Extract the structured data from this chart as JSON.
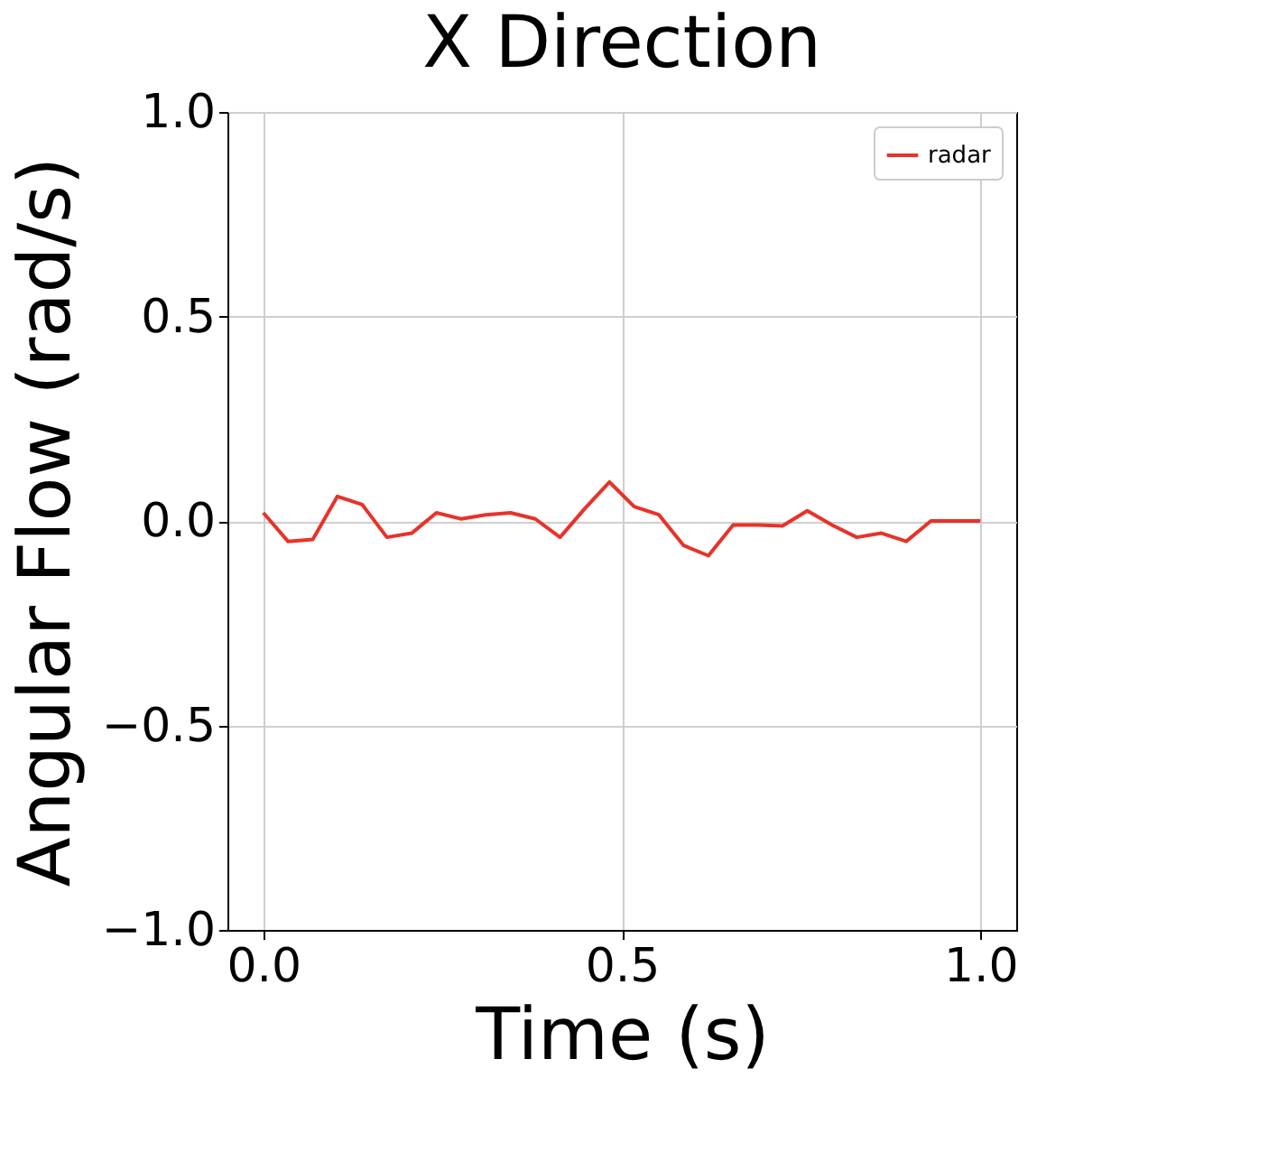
{
  "chart_data": {
    "type": "line",
    "title": "X Direction",
    "xlabel": "Time (s)",
    "ylabel": "Angular Flow (rad/s)",
    "x": [
      0.0,
      0.0345,
      0.069,
      0.1034,
      0.1379,
      0.1724,
      0.2069,
      0.2414,
      0.2759,
      0.3103,
      0.3448,
      0.3793,
      0.4138,
      0.4483,
      0.4828,
      0.5172,
      0.5517,
      0.5862,
      0.6207,
      0.6552,
      0.6897,
      0.7241,
      0.7586,
      0.7931,
      0.8276,
      0.8621,
      0.8966,
      0.931,
      0.9655,
      1.0
    ],
    "series": [
      {
        "name": "radar",
        "color": "#e8322a",
        "values": [
          0.02,
          -0.05,
          -0.045,
          0.06,
          0.04,
          -0.04,
          -0.03,
          0.02,
          0.005,
          0.015,
          0.02,
          0.005,
          -0.04,
          0.03,
          0.095,
          0.035,
          0.015,
          -0.06,
          -0.085,
          -0.01,
          -0.01,
          -0.012,
          0.025,
          -0.01,
          -0.04,
          -0.03,
          -0.05,
          0.0,
          0.0,
          0.0
        ]
      }
    ],
    "xlim": [
      -0.05,
      1.05
    ],
    "xticks": [
      {
        "value": 0,
        "label": "0.0"
      },
      0.5,
      {
        "value": 1,
        "label": "1.0"
      }
    ],
    "ylim": [
      -1,
      1
    ],
    "yticks": [
      {
        "value": -1,
        "label": "−1.0"
      },
      -0.5,
      {
        "value": 0,
        "label": "0.0"
      },
      0.5,
      {
        "value": 1,
        "label": "1.0"
      }
    ],
    "grid": true,
    "legend": "top right",
    "marker": "none",
    "line_style": "solid"
  }
}
